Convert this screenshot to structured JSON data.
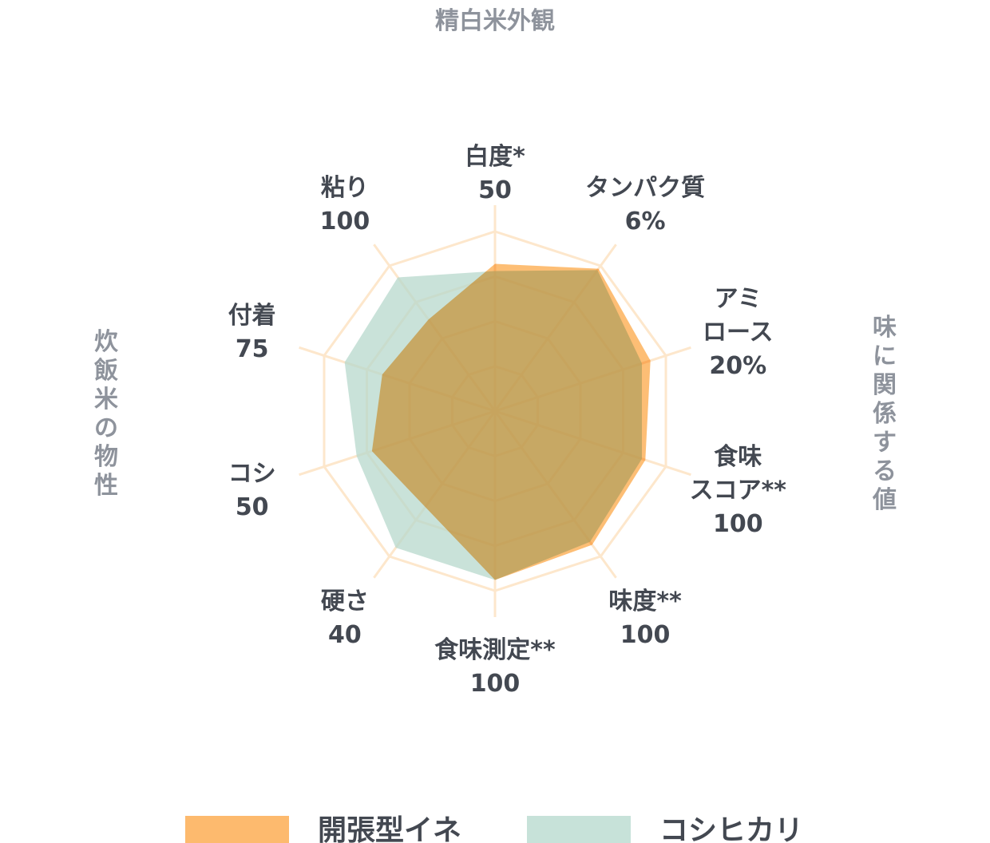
{
  "chart_data": {
    "type": "radar",
    "axes": [
      {
        "name": "白度*",
        "value": "50"
      },
      {
        "name": "タンパク質",
        "value": "6%"
      },
      {
        "name": "アミ\nロース",
        "value": "20%"
      },
      {
        "name": "食味\nスコア**",
        "value": "100"
      },
      {
        "name": "味度**",
        "value": "100"
      },
      {
        "name": "食味測定**",
        "value": "100"
      },
      {
        "name": "硬さ",
        "value": "40"
      },
      {
        "name": "コシ",
        "value": "50"
      },
      {
        "name": "付着",
        "value": "75"
      },
      {
        "name": "粘り",
        "value": "100"
      }
    ],
    "group_labels": {
      "top": "精白米外観",
      "right": "味に関係する値",
      "left": "炊飯米の物性"
    },
    "series": [
      {
        "name": "開張型イネ",
        "color": "#fdba6e",
        "values": [
          0.82,
          0.98,
          0.91,
          0.88,
          0.92,
          0.94,
          0.66,
          0.72,
          0.66,
          0.63
        ]
      },
      {
        "name": "コシヒカリ",
        "color": "#b7d8cc",
        "values": [
          0.78,
          0.97,
          0.86,
          0.86,
          0.9,
          0.94,
          0.94,
          0.81,
          0.88,
          0.92
        ]
      }
    ],
    "r_range": [
      0,
      1
    ],
    "grid": true,
    "legend": "bottom"
  }
}
